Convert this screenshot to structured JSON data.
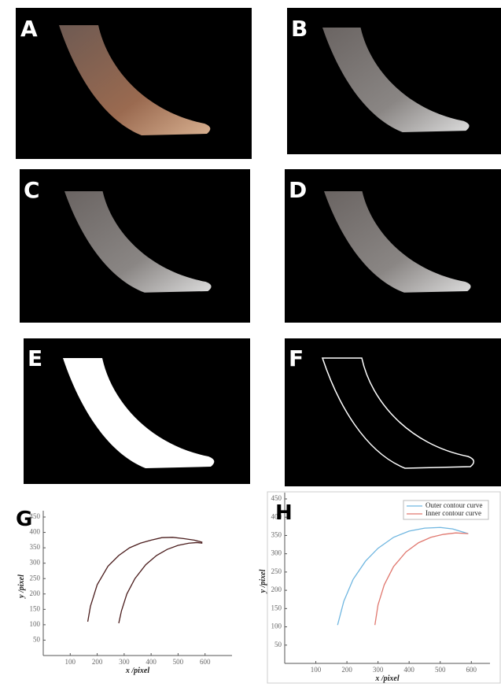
{
  "panels": [
    {
      "label": "A"
    },
    {
      "label": "B"
    },
    {
      "label": "C"
    },
    {
      "label": "D"
    },
    {
      "label": "E"
    },
    {
      "label": "F"
    }
  ],
  "chart_data": [
    {
      "type": "line",
      "panel_label": "G",
      "xlabel": "x /pixel",
      "ylabel": "y /pixel",
      "xlim": [
        0,
        700
      ],
      "ylim": [
        0,
        450
      ],
      "xticks": [
        100,
        200,
        300,
        400,
        500,
        600
      ],
      "yticks": [
        50,
        100,
        150,
        200,
        250,
        300,
        350,
        400,
        450
      ],
      "series": [
        {
          "color": "#4a1c1c",
          "x": [
            165,
            175,
            200,
            240,
            280,
            320,
            360,
            400,
            440,
            480,
            520,
            560,
            590
          ],
          "values": [
            110,
            160,
            230,
            290,
            325,
            350,
            365,
            375,
            383,
            384,
            380,
            375,
            368
          ]
        },
        {
          "color": "#4a1c1c",
          "x": [
            280,
            290,
            310,
            340,
            380,
            420,
            460,
            500,
            540,
            570,
            590
          ],
          "values": [
            105,
            145,
            200,
            250,
            295,
            325,
            345,
            358,
            365,
            367,
            365
          ]
        }
      ]
    },
    {
      "type": "line",
      "panel_label": "H",
      "xlabel": "x /pixel",
      "ylabel": "y /pixel",
      "xlim": [
        0,
        660
      ],
      "ylim": [
        0,
        450
      ],
      "xticks": [
        100,
        200,
        300,
        400,
        500,
        600
      ],
      "yticks": [
        50,
        100,
        150,
        200,
        250,
        300,
        350,
        400,
        450
      ],
      "legend": "upper right",
      "series": [
        {
          "name": "Outer contour curve",
          "color": "#6fb6e0",
          "x": [
            170,
            190,
            220,
            260,
            300,
            350,
            400,
            450,
            500,
            540,
            570,
            590
          ],
          "values": [
            105,
            170,
            230,
            280,
            315,
            345,
            362,
            370,
            372,
            368,
            360,
            355
          ]
        },
        {
          "name": "Inner contour curve",
          "color": "#e0786f",
          "x": [
            290,
            300,
            320,
            350,
            390,
            430,
            470,
            510,
            550,
            590
          ],
          "values": [
            105,
            160,
            215,
            265,
            305,
            330,
            345,
            353,
            357,
            355
          ]
        }
      ]
    }
  ]
}
